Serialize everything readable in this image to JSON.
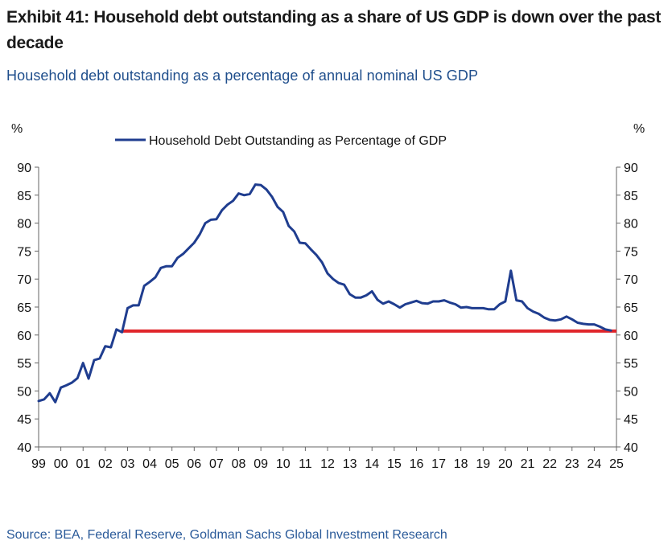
{
  "header": {
    "title": "Exhibit 41: Household debt outstanding as a share of US GDP is down over the past decade",
    "subtitle": "Household debt outstanding as a percentage of annual nominal US GDP"
  },
  "footer": {
    "source": "Source: BEA, Federal Reserve, Goldman Sachs Global Investment Research"
  },
  "chart_data": {
    "type": "line",
    "title": "Household debt outstanding as a percentage of annual nominal US GDP",
    "ylabel_left": "%",
    "ylabel_right": "%",
    "xlabel": "",
    "ylim": [
      40,
      90
    ],
    "yticks": [
      40,
      45,
      50,
      55,
      60,
      65,
      70,
      75,
      80,
      85,
      90
    ],
    "xlim": [
      1999,
      2025
    ],
    "xtick_labels": [
      "99",
      "00",
      "01",
      "02",
      "03",
      "04",
      "05",
      "06",
      "07",
      "08",
      "09",
      "10",
      "11",
      "12",
      "13",
      "14",
      "15",
      "16",
      "17",
      "18",
      "19",
      "20",
      "21",
      "22",
      "23",
      "24",
      "25"
    ],
    "legend": {
      "position": "top-center",
      "entries": [
        "Household Debt Outstanding as Percentage of GDP"
      ]
    },
    "series": [
      {
        "name": "Household Debt Outstanding as Percentage of GDP",
        "color": "#1f3d8f",
        "x": [
          1999.0,
          1999.25,
          1999.5,
          1999.75,
          2000.0,
          2000.25,
          2000.5,
          2000.75,
          2001.0,
          2001.25,
          2001.5,
          2001.75,
          2002.0,
          2002.25,
          2002.5,
          2002.75,
          2003.0,
          2003.25,
          2003.5,
          2003.75,
          2004.0,
          2004.25,
          2004.5,
          2004.75,
          2005.0,
          2005.25,
          2005.5,
          2005.75,
          2006.0,
          2006.25,
          2006.5,
          2006.75,
          2007.0,
          2007.25,
          2007.5,
          2007.75,
          2008.0,
          2008.25,
          2008.5,
          2008.75,
          2009.0,
          2009.25,
          2009.5,
          2009.75,
          2010.0,
          2010.25,
          2010.5,
          2010.75,
          2011.0,
          2011.25,
          2011.5,
          2011.75,
          2012.0,
          2012.25,
          2012.5,
          2012.75,
          2013.0,
          2013.25,
          2013.5,
          2013.75,
          2014.0,
          2014.25,
          2014.5,
          2014.75,
          2015.0,
          2015.25,
          2015.5,
          2015.75,
          2016.0,
          2016.25,
          2016.5,
          2016.75,
          2017.0,
          2017.25,
          2017.5,
          2017.75,
          2018.0,
          2018.25,
          2018.5,
          2018.75,
          2019.0,
          2019.25,
          2019.5,
          2019.75,
          2020.0,
          2020.25,
          2020.5,
          2020.75,
          2021.0,
          2021.25,
          2021.5,
          2021.75,
          2022.0,
          2022.25,
          2022.5,
          2022.75,
          2023.0,
          2023.25,
          2023.5,
          2023.75,
          2024.0,
          2024.25,
          2024.5,
          2024.75
        ],
        "values": [
          48.2,
          48.5,
          49.6,
          48.0,
          50.6,
          51.0,
          51.5,
          52.3,
          55.0,
          52.2,
          55.5,
          55.8,
          58.0,
          57.8,
          61.0,
          60.5,
          64.8,
          65.3,
          65.3,
          68.8,
          69.5,
          70.3,
          72.0,
          72.3,
          72.3,
          73.8,
          74.5,
          75.5,
          76.5,
          78.0,
          80.0,
          80.6,
          80.7,
          82.3,
          83.3,
          84.0,
          85.3,
          85.0,
          85.2,
          86.9,
          86.8,
          86.0,
          84.7,
          82.9,
          82.0,
          79.5,
          78.5,
          76.5,
          76.4,
          75.3,
          74.3,
          73.0,
          71.0,
          70.0,
          69.3,
          69.0,
          67.3,
          66.7,
          66.7,
          67.1,
          67.8,
          66.3,
          65.6,
          66.0,
          65.5,
          64.9,
          65.5,
          65.8,
          66.1,
          65.7,
          65.6,
          66.0,
          66.0,
          66.2,
          65.8,
          65.5,
          64.9,
          65.0,
          64.8,
          64.8,
          64.8,
          64.6,
          64.6,
          65.5,
          66.0,
          71.5,
          66.2,
          66.0,
          64.8,
          64.2,
          63.8,
          63.1,
          62.7,
          62.6,
          62.8,
          63.3,
          62.8,
          62.2,
          62.0,
          61.9,
          61.9,
          61.5,
          61.0,
          60.8
        ]
      },
      {
        "name": "reference-line",
        "color": "#e0262b",
        "x": [
          2002.75,
          2025.0
        ],
        "values": [
          60.7,
          60.7
        ]
      }
    ]
  }
}
